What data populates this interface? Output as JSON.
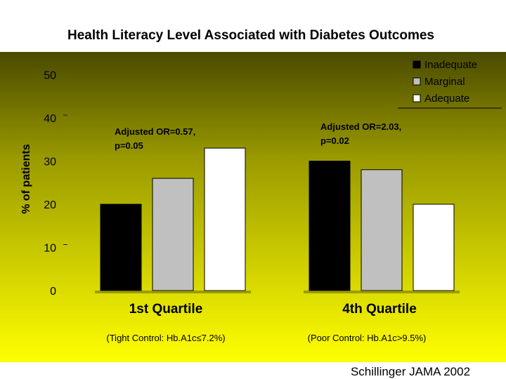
{
  "chart_data": {
    "type": "bar",
    "title": "Health Literacy Level Associated with Diabetes Outcomes",
    "ylabel": "% of patients",
    "ylim": [
      0,
      50
    ],
    "yticks": [
      0,
      10,
      20,
      30,
      40,
      50
    ],
    "categories": [
      "1st Quartile",
      "4th Quartile"
    ],
    "category_subtitles": [
      "(Tight Control: Hb.A1c≤7.2%)",
      "(Poor Control: Hb.A1c>9.5%)"
    ],
    "series": [
      {
        "name": "Inadequate",
        "color": "#000000",
        "values": [
          20,
          30
        ]
      },
      {
        "name": "Marginal",
        "color": "#c0c0c0",
        "values": [
          26,
          28
        ]
      },
      {
        "name": "Adequate",
        "color": "#ffffff",
        "values": [
          33,
          20
        ]
      }
    ],
    "annotations": [
      {
        "lines": [
          "Adjusted OR=0.57,",
          "p=0.05"
        ]
      },
      {
        "lines": [
          "Adjusted OR=2.03,",
          "p=0.02"
        ]
      }
    ],
    "legend_position": "top-right",
    "grid": false
  },
  "citation": "Schillinger JAMA 2002",
  "colors": {
    "background_top": "#4a4a00",
    "background_bottom": "#ffff00",
    "page": "#ffffff"
  }
}
